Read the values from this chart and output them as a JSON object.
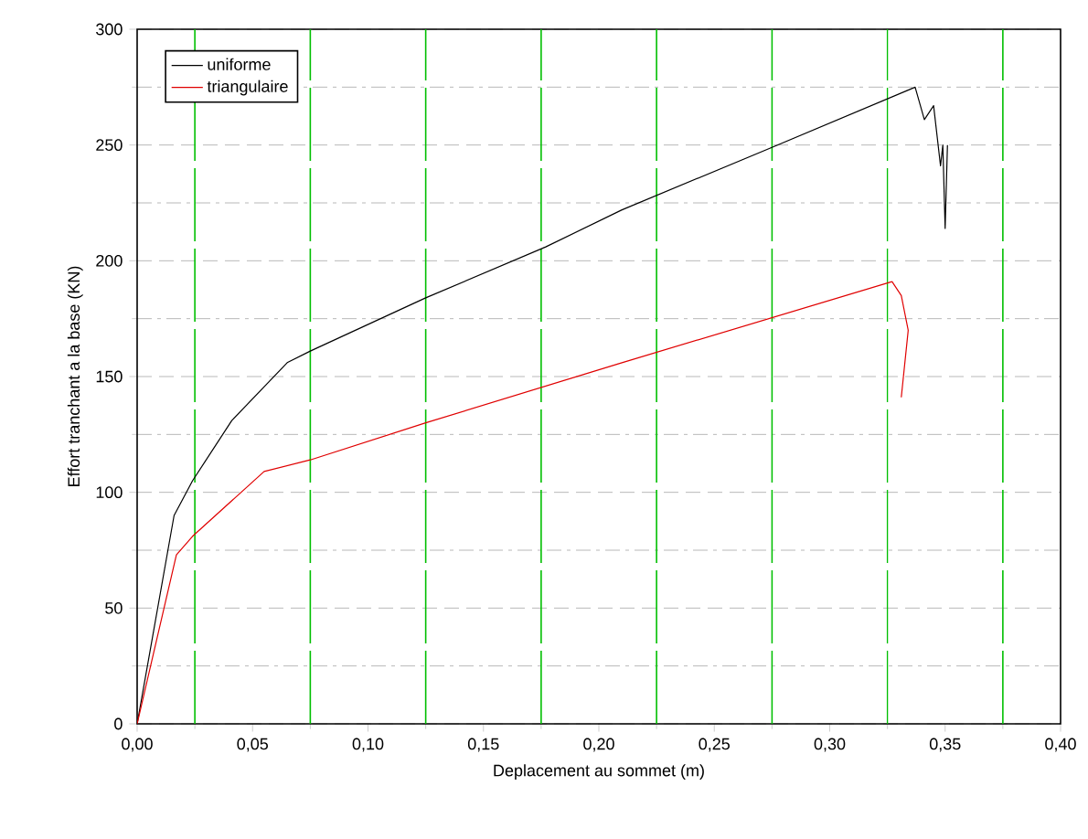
{
  "chart_data": {
    "type": "line",
    "xlabel": "Deplacement au sommet (m)",
    "ylabel": "Effort tranchant a la base (KN)",
    "xlim": [
      0,
      0.4
    ],
    "ylim": [
      0,
      300
    ],
    "xticks": [
      {
        "value": 0,
        "label": "0,00"
      },
      {
        "value": 0.05,
        "label": "0,05"
      },
      {
        "value": 0.1,
        "label": "0,10"
      },
      {
        "value": 0.15,
        "label": "0,15"
      },
      {
        "value": 0.2,
        "label": "0,20"
      },
      {
        "value": 0.25,
        "label": "0,25"
      },
      {
        "value": 0.3,
        "label": "0,30"
      },
      {
        "value": 0.35,
        "label": "0,35"
      },
      {
        "value": 0.4,
        "label": "0,40"
      }
    ],
    "yticks": [
      0,
      50,
      100,
      150,
      200,
      250,
      300
    ],
    "grid": "y",
    "ref_lines": [
      {
        "axis": "x",
        "value": 0.025,
        "color": "#00bf00",
        "line_style": "dashed"
      },
      {
        "axis": "x",
        "value": 0.075,
        "color": "#00bf00",
        "line_style": "dashed"
      },
      {
        "axis": "x",
        "value": 0.125,
        "color": "#00bf00",
        "line_style": "dashed"
      },
      {
        "axis": "x",
        "value": 0.175,
        "color": "#00bf00",
        "line_style": "dashed"
      },
      {
        "axis": "x",
        "value": 0.225,
        "color": "#00bf00",
        "line_style": "dashed"
      },
      {
        "axis": "x",
        "value": 0.275,
        "color": "#00bf00",
        "line_style": "dashed"
      },
      {
        "axis": "x",
        "value": 0.325,
        "color": "#00bf00",
        "line_style": "dashed"
      },
      {
        "axis": "x",
        "value": 0.375,
        "color": "#00bf00",
        "line_style": "dashed"
      }
    ],
    "legend": "top left",
    "marker": "none",
    "line_style": "solid",
    "series": [
      {
        "name": "uniforme",
        "color": "#000000",
        "x": [
          0,
          0.016,
          0.024,
          0.041,
          0.065,
          0.075,
          0.125,
          0.177,
          0.21,
          0.275,
          0.337,
          0.341,
          0.345,
          0.348,
          0.349,
          0.35,
          0.351
        ],
        "values": [
          0,
          90,
          105,
          131,
          156,
          161,
          184,
          206,
          222,
          249,
          275,
          261,
          267,
          241,
          250,
          214,
          250
        ]
      },
      {
        "name": "triangulaire",
        "color": "#e00000",
        "x": [
          0,
          0.017,
          0.024,
          0.055,
          0.075,
          0.125,
          0.21,
          0.327,
          0.331,
          0.334,
          0.331
        ],
        "values": [
          0,
          73,
          81,
          109,
          114,
          130,
          156,
          191,
          185,
          170,
          141
        ]
      }
    ]
  }
}
